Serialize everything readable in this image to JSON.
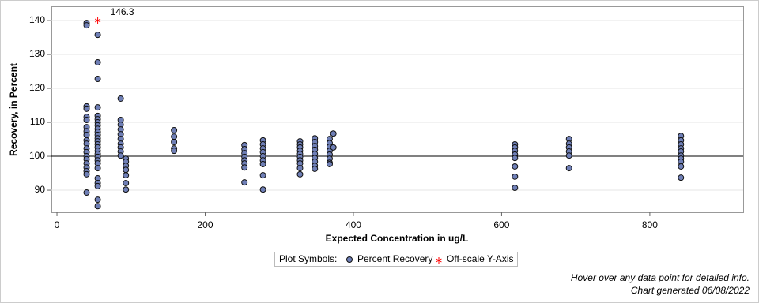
{
  "chart_data": {
    "type": "scatter",
    "xlabel": "Expected Concentration in ug/L",
    "ylabel": "Recovery, in Percent",
    "xlim": [
      -7.5,
      926
    ],
    "ylim": [
      83.5,
      144.2
    ],
    "xticks": [
      0,
      200,
      400,
      600,
      800
    ],
    "yticks": [
      90,
      100,
      110,
      120,
      130,
      140
    ],
    "grid": true,
    "reference_line": 100,
    "legend_title": "Plot Symbols:",
    "series": [
      {
        "name": "Percent Recovery",
        "color": "#6f7fb6",
        "x": [
          40,
          40,
          40,
          40,
          40,
          40,
          40,
          40,
          40,
          40,
          40,
          40,
          40,
          40,
          40,
          40,
          40,
          40,
          40,
          40,
          55,
          55,
          55,
          55,
          55,
          55,
          55,
          55,
          55,
          55,
          55,
          55,
          55,
          55,
          55,
          55,
          55,
          55,
          55,
          55,
          55,
          55,
          55,
          55,
          55,
          55,
          86,
          86,
          86,
          86,
          86,
          86,
          86,
          86,
          86,
          86,
          93,
          93,
          93,
          93,
          93,
          93,
          93,
          158,
          158,
          158,
          158,
          158,
          253,
          253,
          253,
          253,
          253,
          253,
          253,
          253,
          278,
          278,
          278,
          278,
          278,
          278,
          278,
          278,
          278,
          328,
          328,
          328,
          328,
          328,
          328,
          328,
          328,
          328,
          328,
          348,
          348,
          348,
          348,
          348,
          348,
          348,
          348,
          348,
          368,
          368,
          368,
          368,
          368,
          368,
          368,
          368,
          373,
          373,
          618,
          618,
          618,
          618,
          618,
          618,
          618,
          618,
          691,
          691,
          691,
          691,
          691,
          691,
          842,
          842,
          842,
          842,
          842,
          842,
          842,
          842,
          842,
          842
        ],
        "values": [
          139.3,
          138.6,
          114.7,
          114,
          111.6,
          110.7,
          108.6,
          107.4,
          106.3,
          104.7,
          103.7,
          102.3,
          101.2,
          100,
          99.1,
          97.9,
          96.7,
          95.6,
          94.7,
          89.3,
          135.8,
          127.7,
          122.8,
          114.4,
          111.9,
          110.9,
          110,
          109.1,
          108.1,
          107.2,
          106.3,
          105.3,
          104.4,
          103.5,
          102.6,
          101.6,
          100.7,
          99.8,
          98.8,
          97.9,
          96.5,
          93.5,
          92.1,
          91.2,
          87.2,
          85.3,
          117,
          110.7,
          109.3,
          107.9,
          106.5,
          105.1,
          103.7,
          102.6,
          101.4,
          100.2,
          99.3,
          98.4,
          97.2,
          96,
          94.4,
          92.1,
          90.2,
          107.7,
          105.8,
          104.2,
          102.3,
          101.6,
          103.3,
          102.1,
          100.9,
          99.8,
          98.8,
          97.9,
          96.7,
          92.3,
          104.7,
          103.5,
          102.3,
          101.2,
          100,
          98.8,
          97.7,
          94.4,
          90.2,
          104.4,
          103.5,
          102.6,
          101.6,
          100.7,
          99.8,
          98.8,
          97.9,
          96.5,
          94.7,
          105.3,
          104.2,
          103,
          101.9,
          100.7,
          99.5,
          98.4,
          97.2,
          96.3,
          105.1,
          103.9,
          102.8,
          101.6,
          100.5,
          99.3,
          98.1,
          97.7,
          106.7,
          102.6,
          103.5,
          102.6,
          101.6,
          100.5,
          99.5,
          97,
          94,
          90.7,
          105.1,
          103.7,
          102.6,
          101.4,
          100.2,
          96.5,
          106,
          104.7,
          103.5,
          102.3,
          101.4,
          100.2,
          99.3,
          98.4,
          97,
          93.7
        ]
      },
      {
        "name": "Off-scale Y-Axis",
        "color": "#ff0000",
        "x": [
          55
        ],
        "values": [
          146.3
        ]
      }
    ],
    "footer": [
      "Hover over any data point for detailed info.",
      "Chart generated 06/08/2022"
    ]
  }
}
